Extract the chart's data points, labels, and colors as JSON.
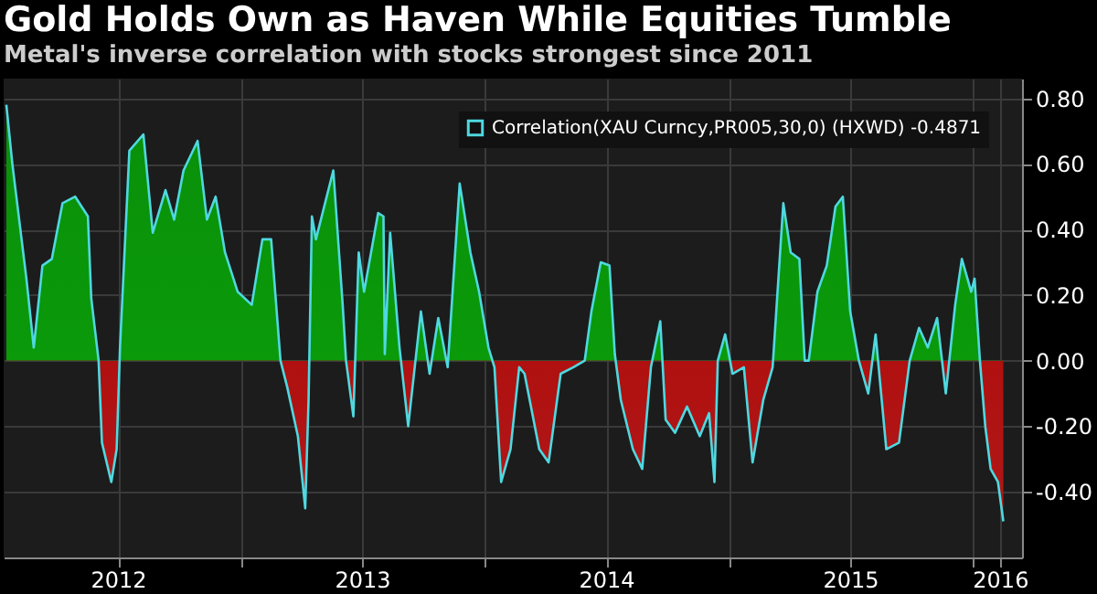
{
  "chart_data": {
    "type": "area",
    "title": "Gold Holds Own as Haven While Equities Tumble",
    "subtitle": "Metal's inverse correlation with stocks strongest since 2011",
    "x": [
      "2012-01-16",
      "2012-01-25",
      "2012-02-15",
      "2012-02-26",
      "2012-03-10",
      "2012-03-24",
      "2012-04-09",
      "2012-04-28",
      "2012-05-17",
      "2012-05-22",
      "2012-06-02",
      "2012-06-07",
      "2012-06-21",
      "2012-06-29",
      "2012-07-04",
      "2012-07-18",
      "2012-08-08",
      "2012-08-22",
      "2012-09-10",
      "2012-09-23",
      "2012-10-07",
      "2012-10-28",
      "2012-11-11",
      "2012-11-24",
      "2012-12-08",
      "2012-12-27",
      "2013-01-17",
      "2013-02-02",
      "2013-02-15",
      "2013-03-01",
      "2013-03-11",
      "2013-03-27",
      "2013-04-07",
      "2013-04-12",
      "2013-04-17",
      "2013-04-23",
      "2013-05-19",
      "2013-06-02",
      "2013-06-07",
      "2013-06-18",
      "2013-06-26",
      "2013-07-04",
      "2013-07-25",
      "2013-08-02",
      "2013-08-04",
      "2013-08-12",
      "2013-08-26",
      "2013-09-08",
      "2013-09-21",
      "2013-09-27",
      "2013-10-10",
      "2013-10-23",
      "2013-11-06",
      "2013-11-24",
      "2013-12-10",
      "2013-12-23",
      "2014-01-06",
      "2014-01-15",
      "2014-01-25",
      "2014-02-08",
      "2014-02-21",
      "2014-03-01",
      "2014-03-23",
      "2014-04-06",
      "2014-04-24",
      "2014-05-13",
      "2014-05-30",
      "2014-06-09",
      "2014-06-23",
      "2014-07-06",
      "2014-07-14",
      "2014-07-23",
      "2014-08-10",
      "2014-08-24",
      "2014-09-06",
      "2014-09-20",
      "2014-09-28",
      "2014-10-12",
      "2014-10-30",
      "2014-11-18",
      "2014-12-02",
      "2014-12-10",
      "2014-12-15",
      "2014-12-26",
      "2015-01-06",
      "2015-01-23",
      "2015-02-05",
      "2015-02-21",
      "2015-03-07",
      "2015-03-23",
      "2015-04-03",
      "2015-04-16",
      "2015-04-24",
      "2015-04-30",
      "2015-05-13",
      "2015-05-27",
      "2015-06-09",
      "2015-06-20",
      "2015-07-01",
      "2015-07-14",
      "2015-07-28",
      "2015-08-08",
      "2015-08-24",
      "2015-09-12",
      "2015-09-28",
      "2015-10-12",
      "2015-10-25",
      "2015-11-08",
      "2015-11-21",
      "2015-12-05",
      "2015-12-15",
      "2015-12-29",
      "2016-01-03",
      "2016-01-11",
      "2016-01-19",
      "2016-01-27",
      "2016-02-07",
      "2016-02-15"
    ],
    "series": [
      {
        "name": "Correlation(XAU Curncy,PR005,30,0) (HXWD) -0.4871",
        "color": "#4fd8e0",
        "values": [
          0.78,
          0.6,
          0.25,
          0.04,
          0.29,
          0.31,
          0.48,
          0.5,
          0.44,
          0.19,
          0.0,
          -0.25,
          -0.37,
          -0.27,
          0.04,
          0.64,
          0.69,
          0.39,
          0.52,
          0.43,
          0.58,
          0.67,
          0.43,
          0.5,
          0.33,
          0.21,
          0.17,
          0.37,
          0.37,
          0.0,
          -0.08,
          -0.23,
          -0.45,
          -0.12,
          0.44,
          0.37,
          0.58,
          0.17,
          0.0,
          -0.17,
          0.33,
          0.21,
          0.45,
          0.44,
          0.02,
          0.39,
          0.04,
          -0.2,
          0.04,
          0.15,
          -0.04,
          0.13,
          -0.02,
          0.54,
          0.33,
          0.21,
          0.04,
          -0.02,
          -0.37,
          -0.27,
          -0.02,
          -0.04,
          -0.27,
          -0.31,
          -0.04,
          -0.02,
          0.0,
          0.15,
          0.3,
          0.29,
          0.02,
          -0.12,
          -0.27,
          -0.33,
          -0.02,
          0.12,
          -0.18,
          -0.22,
          -0.14,
          -0.23,
          -0.16,
          -0.37,
          0.0,
          0.08,
          -0.04,
          -0.02,
          -0.31,
          -0.12,
          -0.02,
          0.48,
          0.33,
          0.31,
          0.0,
          0.0,
          0.21,
          0.29,
          0.47,
          0.5,
          0.15,
          0.0,
          -0.1,
          0.08,
          -0.27,
          -0.25,
          0.0,
          0.1,
          0.04,
          0.13,
          -0.1,
          0.17,
          0.31,
          0.21,
          0.25,
          0.0,
          -0.2,
          -0.33,
          -0.37,
          -0.49
        ]
      }
    ],
    "xlim": [
      "2012-01-12",
      "2016-03-14"
    ],
    "xticks": [
      {
        "value": "2012-07-01",
        "label": "2012"
      },
      {
        "value": "2013-01-01",
        "label": null
      },
      {
        "value": "2013-07-01",
        "label": "2013"
      },
      {
        "value": "2014-01-01",
        "label": null
      },
      {
        "value": "2014-07-01",
        "label": "2014"
      },
      {
        "value": "2015-01-01",
        "label": null
      },
      {
        "value": "2015-07-01",
        "label": "2015"
      },
      {
        "value": "2016-01-01",
        "label": null
      },
      {
        "value": "2016-02-10",
        "label": "2016"
      }
    ],
    "ylim": [
      -0.6,
      0.86
    ],
    "yticks": [
      {
        "value": 0.8,
        "label": "0.80"
      },
      {
        "value": 0.6,
        "label": "0.60"
      },
      {
        "value": 0.4,
        "label": "0.40"
      },
      {
        "value": 0.2,
        "label": "0.20"
      },
      {
        "value": 0,
        "label": "0.00"
      },
      {
        "value": -0.2,
        "label": "-0.20"
      },
      {
        "value": -0.4,
        "label": "-0.40"
      }
    ],
    "grid": true,
    "legend": "top right"
  }
}
